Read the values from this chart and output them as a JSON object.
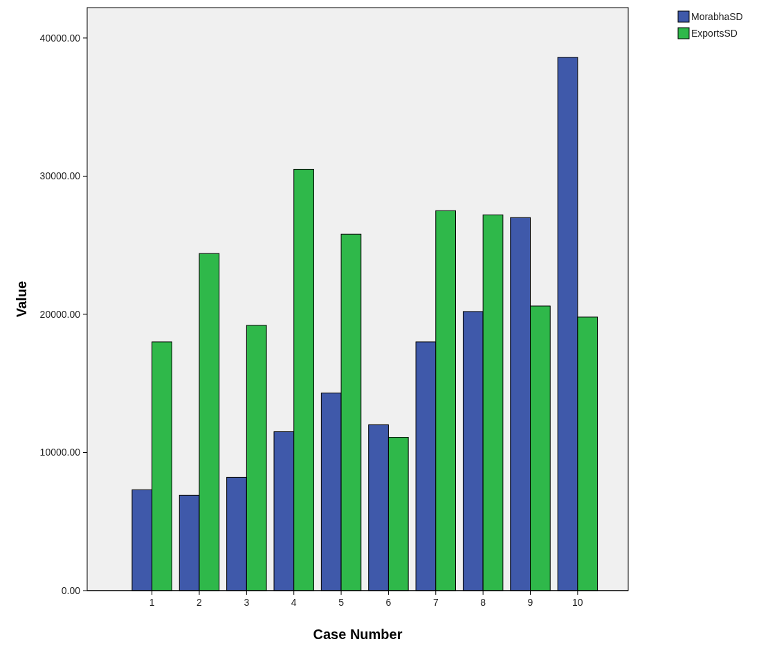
{
  "chart_data": {
    "type": "bar",
    "xlabel": "Case Number",
    "ylabel": "Value",
    "categories": [
      "1",
      "2",
      "3",
      "4",
      "5",
      "6",
      "7",
      "8",
      "9",
      "10"
    ],
    "series": [
      {
        "name": "MorabhaSD",
        "color": "#3f59aa",
        "values": [
          7300,
          6900,
          8200,
          11500,
          14300,
          12000,
          18000,
          20200,
          27000,
          38600
        ]
      },
      {
        "name": "ExportsSD",
        "color": "#2fb84a",
        "values": [
          18000,
          24400,
          19200,
          30500,
          25800,
          11100,
          27500,
          27200,
          20600,
          19800
        ]
      }
    ],
    "ylim": [
      0,
      42200
    ],
    "yticks": [
      {
        "value": 0,
        "label": "0.00"
      },
      {
        "value": 10000,
        "label": "10000.00"
      },
      {
        "value": 20000,
        "label": "20000.00"
      },
      {
        "value": 30000,
        "label": "30000.00"
      },
      {
        "value": 40000,
        "label": "40000.00"
      }
    ],
    "grid": false,
    "legend": "top right"
  }
}
